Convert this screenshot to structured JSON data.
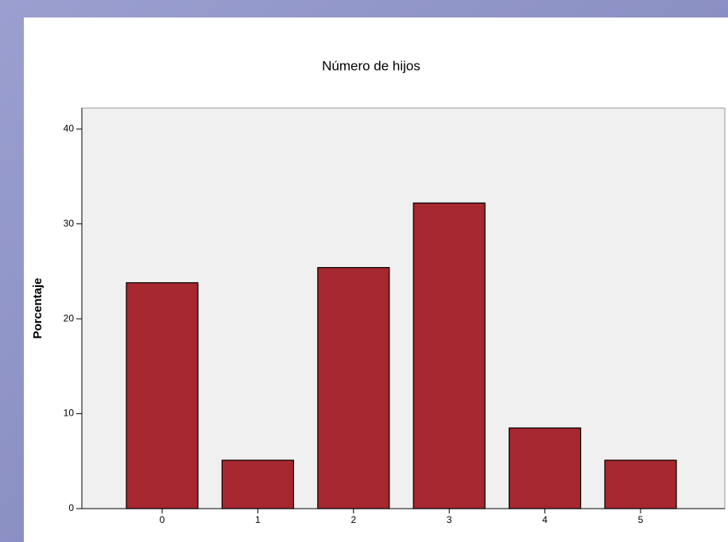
{
  "chart_data": {
    "type": "bar",
    "title": "Número de hijos",
    "y_label": "Porcentaje",
    "categories": [
      "0",
      "1",
      "2",
      "3",
      "4",
      "5"
    ],
    "values": [
      23.8,
      5.1,
      25.4,
      32.2,
      8.5,
      5.1
    ],
    "color": "#a5282f",
    "ylim": [
      0,
      42.2
    ],
    "yticks": [
      0,
      10,
      20,
      30,
      40
    ],
    "grid": false
  }
}
